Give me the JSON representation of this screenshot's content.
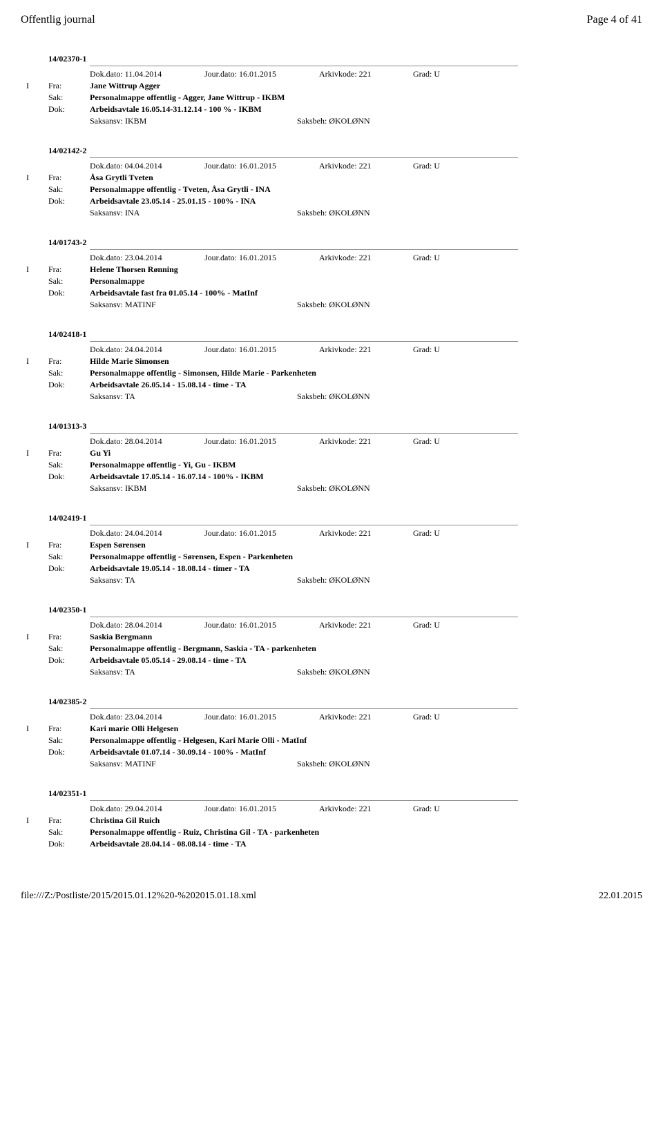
{
  "header": {
    "left": "Offentlig journal",
    "right": "Page 4 of 41"
  },
  "footer": {
    "left": "file:///Z:/Postliste/2015/2015.01.12%20-%202015.01.18.xml",
    "right": "22.01.2015"
  },
  "entries": [
    {
      "id": "14/02370-1",
      "dokdato": "Dok.dato: 11.04.2014",
      "jourdato": "Jour.dato: 16.01.2015",
      "arkiv": "Arkivkode: 221",
      "grad": "Grad: U",
      "iu": "I",
      "fra_label": "Fra:",
      "fra": "Jane Wittrup Agger",
      "sak_label": "Sak:",
      "sak": "Personalmappe offentlig - Agger, Jane Wittrup - IKBM",
      "dok_label": "Dok:",
      "dok": "Arbeidsavtale 16.05.14-31.12.14 - 100 % - IKBM",
      "saksansv": "Saksansv: IKBM",
      "saksbeh": "Saksbeh: ØKOLØNN"
    },
    {
      "id": "14/02142-2",
      "dokdato": "Dok.dato: 04.04.2014",
      "jourdato": "Jour.dato: 16.01.2015",
      "arkiv": "Arkivkode: 221",
      "grad": "Grad: U",
      "iu": "I",
      "fra_label": "Fra:",
      "fra": "Åsa Grytli Tveten",
      "sak_label": "Sak:",
      "sak": "Personalmappe offentlig - Tveten, Åsa Grytli - INA",
      "dok_label": "Dok:",
      "dok": "Arbeidsavtale 23.05.14 - 25.01.15 - 100% - INA",
      "saksansv": "Saksansv: INA",
      "saksbeh": "Saksbeh: ØKOLØNN"
    },
    {
      "id": "14/01743-2",
      "dokdato": "Dok.dato: 23.04.2014",
      "jourdato": "Jour.dato: 16.01.2015",
      "arkiv": "Arkivkode: 221",
      "grad": "Grad: U",
      "iu": "I",
      "fra_label": "Fra:",
      "fra": "Helene Thorsen Rønning",
      "sak_label": "Sak:",
      "sak": "Personalmappe",
      "dok_label": "Dok:",
      "dok": "Arbeidsavtale fast fra 01.05.14 - 100% - MatInf",
      "saksansv": "Saksansv: MATINF",
      "saksbeh": "Saksbeh: ØKOLØNN"
    },
    {
      "id": "14/02418-1",
      "dokdato": "Dok.dato: 24.04.2014",
      "jourdato": "Jour.dato: 16.01.2015",
      "arkiv": "Arkivkode: 221",
      "grad": "Grad: U",
      "iu": "I",
      "fra_label": "Fra:",
      "fra": "Hilde Marie Simonsen",
      "sak_label": "Sak:",
      "sak": "Personalmappe offentlig - Simonsen, Hilde Marie - Parkenheten",
      "dok_label": "Dok:",
      "dok": "Arbeidsavtale 26.05.14 - 15.08.14 - time - TA",
      "saksansv": "Saksansv: TA",
      "saksbeh": "Saksbeh: ØKOLØNN"
    },
    {
      "id": "14/01313-3",
      "dokdato": "Dok.dato: 28.04.2014",
      "jourdato": "Jour.dato: 16.01.2015",
      "arkiv": "Arkivkode: 221",
      "grad": "Grad: U",
      "iu": "I",
      "fra_label": "Fra:",
      "fra": "Gu Yi",
      "sak_label": "Sak:",
      "sak": "Personalmappe offentlig - Yi, Gu - IKBM",
      "dok_label": "Dok:",
      "dok": "Arbeidsavtale 17.05.14 - 16.07.14 - 100% - IKBM",
      "saksansv": "Saksansv: IKBM",
      "saksbeh": "Saksbeh: ØKOLØNN"
    },
    {
      "id": "14/02419-1",
      "dokdato": "Dok.dato: 24.04.2014",
      "jourdato": "Jour.dato: 16.01.2015",
      "arkiv": "Arkivkode: 221",
      "grad": "Grad: U",
      "iu": "I",
      "fra_label": "Fra:",
      "fra": "Espen Sørensen",
      "sak_label": "Sak:",
      "sak": "Personalmappe offentlig - Sørensen, Espen - Parkenheten",
      "dok_label": "Dok:",
      "dok": "Arbeidsavtale 19.05.14 - 18.08.14 - timer - TA",
      "saksansv": "Saksansv: TA",
      "saksbeh": "Saksbeh: ØKOLØNN"
    },
    {
      "id": "14/02350-1",
      "dokdato": "Dok.dato: 28.04.2014",
      "jourdato": "Jour.dato: 16.01.2015",
      "arkiv": "Arkivkode: 221",
      "grad": "Grad: U",
      "iu": "I",
      "fra_label": "Fra:",
      "fra": "Saskia Bergmann",
      "sak_label": "Sak:",
      "sak": "Personalmappe offentlig - Bergmann, Saskia - TA - parkenheten",
      "dok_label": "Dok:",
      "dok": "Arbeidsavtale 05.05.14 - 29.08.14 - time - TA",
      "saksansv": "Saksansv: TA",
      "saksbeh": "Saksbeh: ØKOLØNN"
    },
    {
      "id": "14/02385-2",
      "dokdato": "Dok.dato: 23.04.2014",
      "jourdato": "Jour.dato: 16.01.2015",
      "arkiv": "Arkivkode: 221",
      "grad": "Grad: U",
      "iu": "I",
      "fra_label": "Fra:",
      "fra": "Kari marie Olli Helgesen",
      "sak_label": "Sak:",
      "sak": "Personalmappe offentlig - Helgesen, Kari Marie Olli - MatInf",
      "dok_label": "Dok:",
      "dok": "Arbeidsavtale 01.07.14 - 30.09.14 - 100% - MatInf",
      "saksansv": "Saksansv: MATINF",
      "saksbeh": "Saksbeh: ØKOLØNN"
    },
    {
      "id": "14/02351-1",
      "dokdato": "Dok.dato: 29.04.2014",
      "jourdato": "Jour.dato: 16.01.2015",
      "arkiv": "Arkivkode: 221",
      "grad": "Grad: U",
      "iu": "I",
      "fra_label": "Fra:",
      "fra": "Christina Gil Ruich",
      "sak_label": "Sak:",
      "sak": "Personalmappe offentlig - Ruiz, Christina Gil - TA - parkenheten",
      "dok_label": "Dok:",
      "dok": "Arbeidsavtale 28.04.14 - 08.08.14 - time - TA",
      "saksansv": "",
      "saksbeh": ""
    }
  ]
}
